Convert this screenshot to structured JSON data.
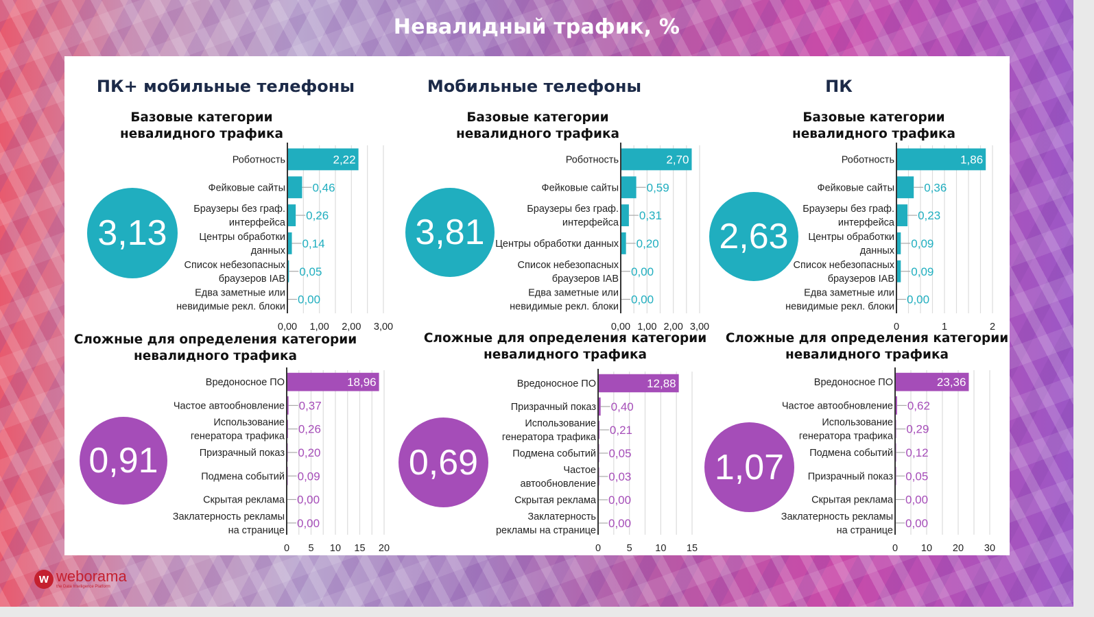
{
  "title": "Невалидный трафик, %",
  "colors": {
    "teal": "#20aebf",
    "purple": "#a54db8",
    "heading": "#1c2a48"
  },
  "logo": {
    "name": "weborama",
    "tagline": "the Data Intelligence Platform",
    "icon": "weborama-w-icon"
  },
  "columns": [
    {
      "title": "ПК+ мобильные телефоны"
    },
    {
      "title": "Мобильные телефоны"
    },
    {
      "title": "ПК"
    }
  ],
  "section_titles": {
    "base": "Базовые категории\nневалидного трафика",
    "complex": "Сложные для определения категории\nневалидного трафика"
  },
  "chart_data": [
    {
      "id": "base-pc-mobile",
      "type": "bar",
      "orientation": "horizontal",
      "title": "Базовые категории невалидного трафика",
      "group": "ПК+ мобильные телефоны",
      "total": "3,13",
      "color": "#20aebf",
      "categories": [
        [
          "Роботность"
        ],
        [
          "Фейковые сайты"
        ],
        [
          "Браузеры без граф.",
          "интерфейса"
        ],
        [
          "Центры обработки",
          "данных"
        ],
        [
          "Список небезопасных",
          "браузеров IAB"
        ],
        [
          "Едва заметные или",
          "невидимые рекл. блоки"
        ]
      ],
      "values": [
        2.22,
        0.46,
        0.26,
        0.14,
        0.05,
        0.0
      ],
      "labels": [
        "2,22",
        "0,46",
        "0,26",
        "0,14",
        "0,05",
        "0,00"
      ],
      "xlim": [
        0,
        3.0
      ],
      "ticks": [
        0,
        1,
        2,
        3
      ],
      "tick_labels": [
        "0,00",
        "1,00",
        "2,00",
        "3,00"
      ],
      "grid_step": 0.5
    },
    {
      "id": "base-mobile",
      "type": "bar",
      "orientation": "horizontal",
      "title": "Базовые категории невалидного трафика",
      "group": "Мобильные телефоны",
      "total": "3,81",
      "color": "#20aebf",
      "categories": [
        [
          "Роботность"
        ],
        [
          "Фейковые сайты"
        ],
        [
          "Браузеры без граф.",
          "интерфейса"
        ],
        [
          "Центры обработки данных"
        ],
        [
          "Список небезопасных",
          "браузеров IAB"
        ],
        [
          "Едва заметные или",
          "невидимые рекл. блоки"
        ]
      ],
      "values": [
        2.7,
        0.59,
        0.31,
        0.2,
        0.0,
        0.0
      ],
      "labels": [
        "2,70",
        "0,59",
        "0,31",
        "0,20",
        "0,00",
        "0,00"
      ],
      "xlim": [
        0,
        3.0
      ],
      "ticks": [
        0,
        1,
        2,
        3
      ],
      "tick_labels": [
        "0,00",
        "1,00",
        "2,00",
        "3,00"
      ],
      "grid_step": 0.5
    },
    {
      "id": "base-pc",
      "type": "bar",
      "orientation": "horizontal",
      "title": "Базовые категории невалидного трафика",
      "group": "ПК",
      "total": "2,63",
      "color": "#20aebf",
      "categories": [
        [
          "Роботность"
        ],
        [
          "Фейковые сайты"
        ],
        [
          "Браузеры без граф.",
          "интерфейса"
        ],
        [
          "Центры обработки",
          "данных"
        ],
        [
          "Список небезопасных",
          "браузеров IAB"
        ],
        [
          "Едва заметные или",
          "невидимые рекл. блоки"
        ]
      ],
      "values": [
        1.86,
        0.36,
        0.23,
        0.09,
        0.09,
        0.0
      ],
      "labels": [
        "1,86",
        "0,36",
        "0,23",
        "0,09",
        "0,09",
        "0,00"
      ],
      "xlim": [
        0,
        2.0
      ],
      "ticks": [
        0,
        1,
        2
      ],
      "tick_labels": [
        "0",
        "1",
        "2"
      ],
      "grid_step": 0.25
    },
    {
      "id": "complex-pc-mobile",
      "type": "bar",
      "orientation": "horizontal",
      "title": "Сложные для определения категории невалидного трафика",
      "group": "ПК+ мобильные телефоны",
      "total": "0,91",
      "color": "#a54db8",
      "categories": [
        [
          "Вредоносное ПО"
        ],
        [
          "Частое автообновление"
        ],
        [
          "Использование",
          "генератора трафика"
        ],
        [
          "Призрачный показ"
        ],
        [
          "Подмена событий"
        ],
        [
          "Скрытая реклама"
        ],
        [
          "Заклатерность рекламы",
          "на странице"
        ]
      ],
      "values": [
        18.96,
        0.37,
        0.26,
        0.2,
        0.09,
        0.0,
        0.0
      ],
      "labels": [
        "18,96",
        "0,37",
        "0,26",
        "0,20",
        "0,09",
        "0,00",
        "0,00"
      ],
      "xlim": [
        0,
        20
      ],
      "ticks": [
        0,
        5,
        10,
        15,
        20
      ],
      "tick_labels": [
        "0",
        "5",
        "10",
        "15",
        "20"
      ],
      "grid_step": 2.5
    },
    {
      "id": "complex-mobile",
      "type": "bar",
      "orientation": "horizontal",
      "title": "Сложные для определения категории невалидного трафика",
      "group": "Мобильные телефоны",
      "total": "0,69",
      "color": "#a54db8",
      "categories": [
        [
          "Вредоносное ПО"
        ],
        [
          "Призрачный показ"
        ],
        [
          "Использование",
          "генератора трафика"
        ],
        [
          "Подмена событий"
        ],
        [
          "Частое",
          "автообновление"
        ],
        [
          "Скрытая реклама"
        ],
        [
          "Заклатерность",
          "рекламы на странице"
        ]
      ],
      "values": [
        12.88,
        0.4,
        0.21,
        0.05,
        0.03,
        0.0,
        0.0
      ],
      "labels": [
        "12,88",
        "0,40",
        "0,21",
        "0,05",
        "0,03",
        "0,00",
        "0,00"
      ],
      "xlim": [
        0,
        15
      ],
      "ticks": [
        0,
        5,
        10,
        15
      ],
      "tick_labels": [
        "0",
        "5",
        "10",
        "15"
      ],
      "grid_step": 2.5
    },
    {
      "id": "complex-pc",
      "type": "bar",
      "orientation": "horizontal",
      "title": "Сложные для определения категории невалидного трафика",
      "group": "ПК",
      "total": "1,07",
      "color": "#a54db8",
      "categories": [
        [
          "Вредоносное ПО"
        ],
        [
          "Частое автообновление"
        ],
        [
          "Использование",
          "генератора трафика"
        ],
        [
          "Подмена событий"
        ],
        [
          "Призрачный показ"
        ],
        [
          "Скрытая реклама"
        ],
        [
          "Заклатерность рекламы",
          "на странице"
        ]
      ],
      "values": [
        23.36,
        0.62,
        0.29,
        0.12,
        0.05,
        0.0,
        0.0
      ],
      "labels": [
        "23,36",
        "0,62",
        "0,29",
        "0,12",
        "0,05",
        "0,00",
        "0,00"
      ],
      "xlim": [
        0,
        30
      ],
      "ticks": [
        0,
        10,
        20,
        30
      ],
      "tick_labels": [
        "0",
        "10",
        "20",
        "30"
      ],
      "grid_step": 5
    }
  ]
}
